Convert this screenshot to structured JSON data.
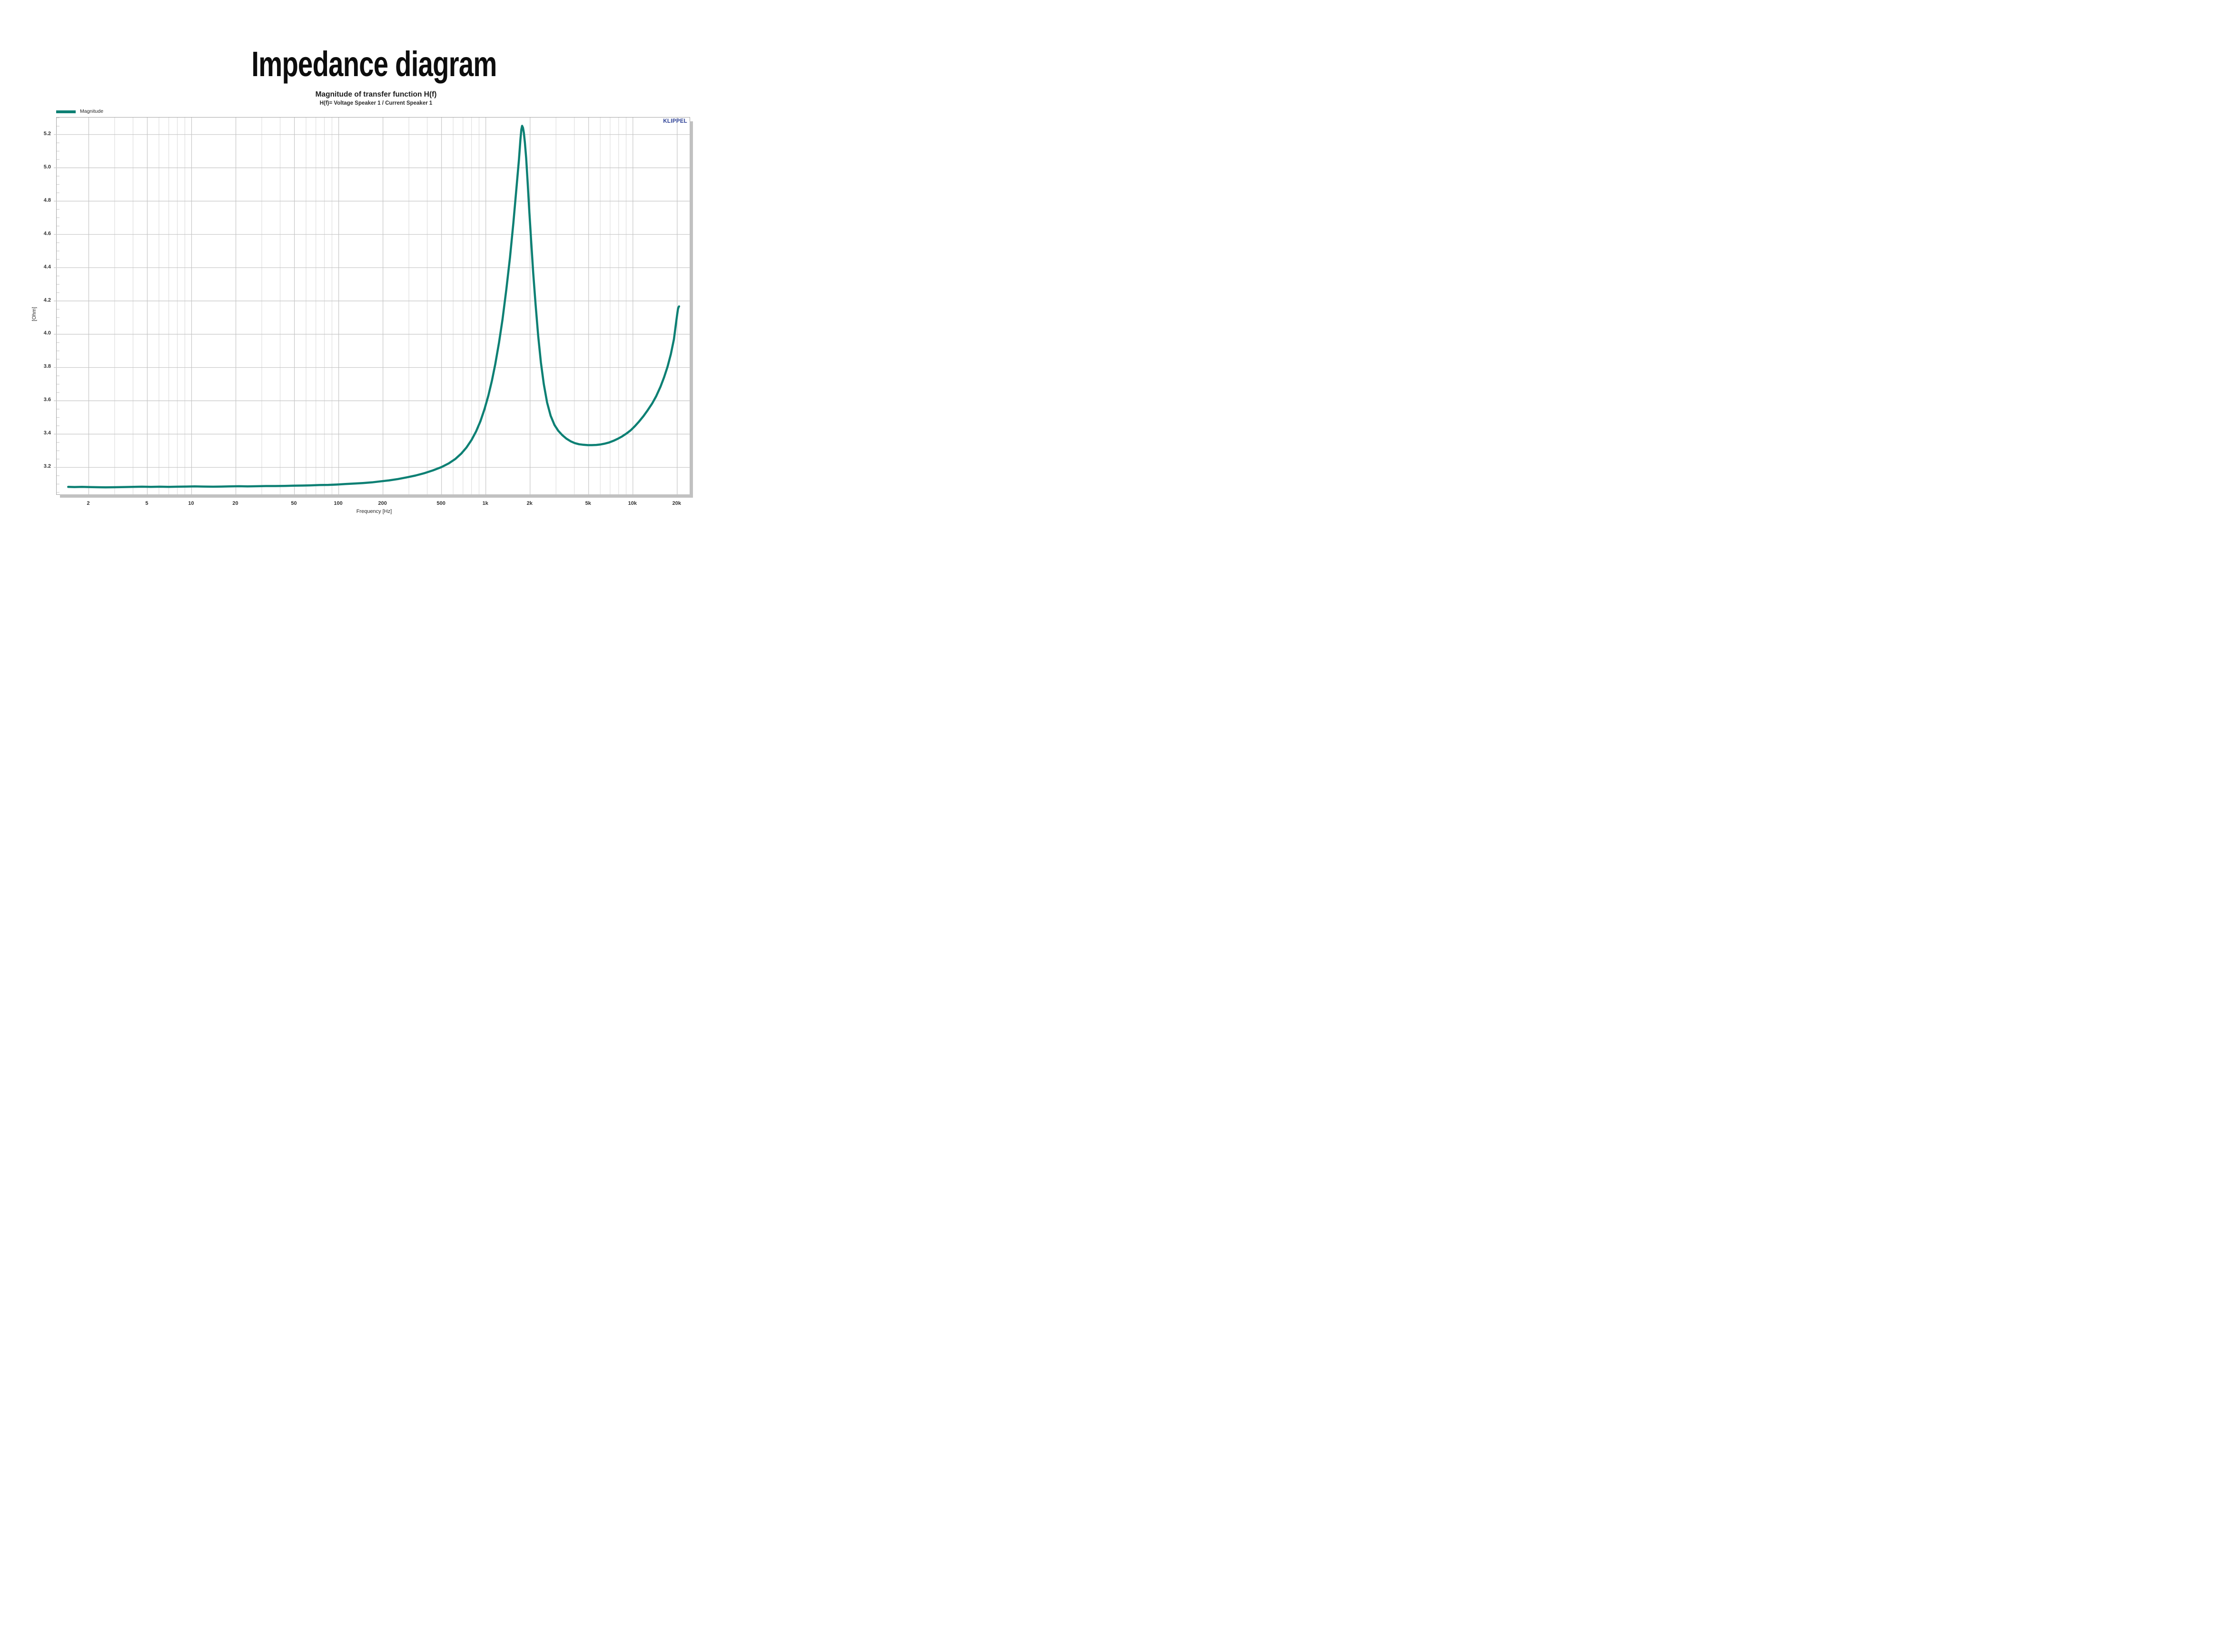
{
  "header": {
    "title": "Impedance diagram",
    "subtitle": "Magnitude of transfer function H(f)",
    "formula": "H(f)= Voltage Speaker 1 / Current Speaker 1"
  },
  "branding": {
    "logo_text": "KLIPPEL",
    "logo_color": "#2c4095"
  },
  "legend": {
    "position": "top-left",
    "items": [
      {
        "label": "Magnitude",
        "color": "#0d8074"
      }
    ]
  },
  "colors": {
    "background": "#ffffff",
    "curve": "#0d8074",
    "frame": "#a3a3a3",
    "grid_major": "#c6c6c6",
    "grid_minor": "#d9d9d9",
    "shadow": "#c1c1c1",
    "tick_text": "#303030"
  },
  "chart_data": {
    "type": "line",
    "title": "Magnitude of transfer function H(f)",
    "xlabel": "Frequency [Hz]",
    "ylabel": "[Ohm]",
    "x_scale": "log",
    "grid": "on",
    "legend_position": "top-left",
    "xlim": [
      1.21,
      24300
    ],
    "ylim": [
      3.038,
      5.302
    ],
    "x_major_ticks": [
      {
        "f": 2,
        "label": "2"
      },
      {
        "f": 5,
        "label": "5"
      },
      {
        "f": 10,
        "label": "10"
      },
      {
        "f": 20,
        "label": "20"
      },
      {
        "f": 50,
        "label": "50"
      },
      {
        "f": 100,
        "label": "100"
      },
      {
        "f": 200,
        "label": "200"
      },
      {
        "f": 500,
        "label": "500"
      },
      {
        "f": 1000,
        "label": "1k"
      },
      {
        "f": 2000,
        "label": "2k"
      },
      {
        "f": 5000,
        "label": "5k"
      },
      {
        "f": 10000,
        "label": "10k"
      },
      {
        "f": 20000,
        "label": "20k"
      }
    ],
    "x_minor_gridlines": [
      3,
      4,
      6,
      7,
      8,
      9,
      30,
      40,
      60,
      70,
      80,
      90,
      300,
      400,
      600,
      700,
      800,
      900,
      3000,
      4000,
      6000,
      7000,
      8000,
      9000
    ],
    "y_major_ticks": [
      {
        "v": 3.2,
        "label": "3.2"
      },
      {
        "v": 3.4,
        "label": "3.4"
      },
      {
        "v": 3.6,
        "label": "3.6"
      },
      {
        "v": 3.8,
        "label": "3.8"
      },
      {
        "v": 4.0,
        "label": "4.0"
      },
      {
        "v": 4.2,
        "label": "4.2"
      },
      {
        "v": 4.4,
        "label": "4.4"
      },
      {
        "v": 4.6,
        "label": "4.6"
      },
      {
        "v": 4.8,
        "label": "4.8"
      },
      {
        "v": 5.0,
        "label": "5.0"
      },
      {
        "v": 5.2,
        "label": "5.2"
      }
    ],
    "y_minor_step": 0.05,
    "series": [
      {
        "name": "Magnitude",
        "color": "#0d8074",
        "points": [
          [
            1.45,
            3.083
          ],
          [
            1.6,
            3.082
          ],
          [
            1.8,
            3.083
          ],
          [
            2.0,
            3.082
          ],
          [
            2.3,
            3.081
          ],
          [
            2.6,
            3.08
          ],
          [
            3.0,
            3.081
          ],
          [
            3.5,
            3.082
          ],
          [
            4.0,
            3.083
          ],
          [
            4.6,
            3.084
          ],
          [
            5.3,
            3.083
          ],
          [
            6.1,
            3.084
          ],
          [
            7.0,
            3.083
          ],
          [
            8.0,
            3.084
          ],
          [
            9.2,
            3.085
          ],
          [
            10.5,
            3.086
          ],
          [
            12,
            3.085
          ],
          [
            14,
            3.084
          ],
          [
            16,
            3.085
          ],
          [
            18,
            3.086
          ],
          [
            21,
            3.087
          ],
          [
            24,
            3.086
          ],
          [
            28,
            3.087
          ],
          [
            32,
            3.088
          ],
          [
            37,
            3.088
          ],
          [
            43,
            3.089
          ],
          [
            49,
            3.09
          ],
          [
            56,
            3.091
          ],
          [
            64,
            3.092
          ],
          [
            74,
            3.094
          ],
          [
            85,
            3.095
          ],
          [
            97,
            3.097
          ],
          [
            111,
            3.1
          ],
          [
            128,
            3.103
          ],
          [
            146,
            3.106
          ],
          [
            168,
            3.11
          ],
          [
            192,
            3.116
          ],
          [
            220,
            3.122
          ],
          [
            253,
            3.13
          ],
          [
            290,
            3.14
          ],
          [
            332,
            3.151
          ],
          [
            381,
            3.165
          ],
          [
            437,
            3.182
          ],
          [
            500,
            3.202
          ],
          [
            560,
            3.224
          ],
          [
            620,
            3.25
          ],
          [
            680,
            3.282
          ],
          [
            740,
            3.32
          ],
          [
            800,
            3.365
          ],
          [
            860,
            3.417
          ],
          [
            920,
            3.478
          ],
          [
            980,
            3.55
          ],
          [
            1040,
            3.63
          ],
          [
            1100,
            3.72
          ],
          [
            1160,
            3.82
          ],
          [
            1230,
            3.95
          ],
          [
            1300,
            4.09
          ],
          [
            1380,
            4.27
          ],
          [
            1460,
            4.46
          ],
          [
            1540,
            4.67
          ],
          [
            1620,
            4.89
          ],
          [
            1680,
            5.05
          ],
          [
            1720,
            5.17
          ],
          [
            1745,
            5.23
          ],
          [
            1765,
            5.252
          ],
          [
            1790,
            5.24
          ],
          [
            1815,
            5.21
          ],
          [
            1845,
            5.15
          ],
          [
            1880,
            5.06
          ],
          [
            1920,
            4.93
          ],
          [
            1970,
            4.76
          ],
          [
            2030,
            4.57
          ],
          [
            2100,
            4.37
          ],
          [
            2180,
            4.18
          ],
          [
            2270,
            3.99
          ],
          [
            2370,
            3.83
          ],
          [
            2480,
            3.7
          ],
          [
            2610,
            3.59
          ],
          [
            2760,
            3.51
          ],
          [
            2930,
            3.455
          ],
          [
            3110,
            3.42
          ],
          [
            3310,
            3.394
          ],
          [
            3530,
            3.373
          ],
          [
            3770,
            3.357
          ],
          [
            4030,
            3.346
          ],
          [
            4310,
            3.339
          ],
          [
            4610,
            3.336
          ],
          [
            4930,
            3.334
          ],
          [
            5270,
            3.334
          ],
          [
            5640,
            3.335
          ],
          [
            6030,
            3.338
          ],
          [
            6450,
            3.343
          ],
          [
            6900,
            3.35
          ],
          [
            7380,
            3.36
          ],
          [
            7890,
            3.372
          ],
          [
            8440,
            3.386
          ],
          [
            9030,
            3.403
          ],
          [
            9660,
            3.423
          ],
          [
            10300,
            3.447
          ],
          [
            11000,
            3.475
          ],
          [
            11800,
            3.508
          ],
          [
            12600,
            3.543
          ],
          [
            13500,
            3.583
          ],
          [
            14400,
            3.628
          ],
          [
            15400,
            3.685
          ],
          [
            16300,
            3.742
          ],
          [
            17200,
            3.805
          ],
          [
            18100,
            3.88
          ],
          [
            19000,
            3.97
          ],
          [
            19600,
            4.06
          ],
          [
            20000,
            4.12
          ],
          [
            20250,
            4.152
          ],
          [
            20450,
            4.163
          ],
          [
            20600,
            4.167
          ]
        ]
      }
    ]
  }
}
